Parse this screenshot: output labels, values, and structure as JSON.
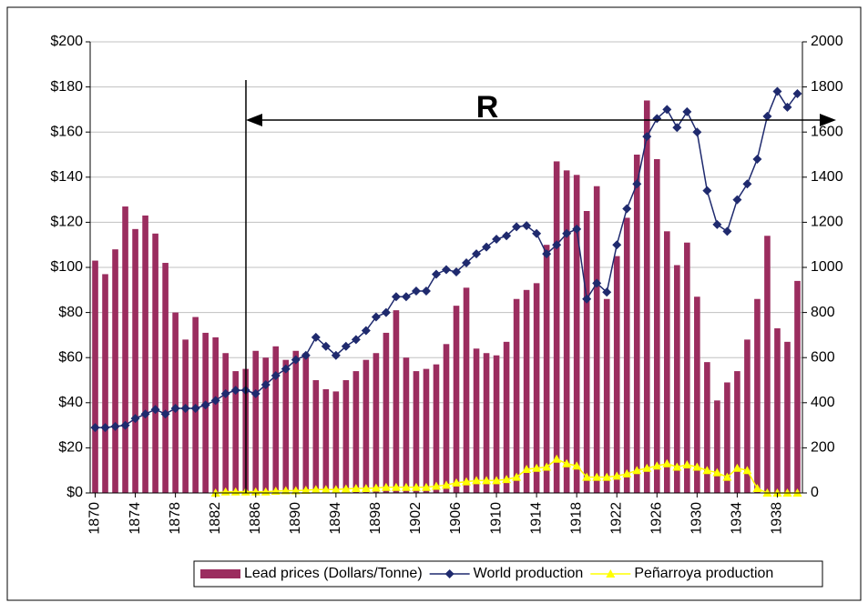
{
  "chart_data": {
    "type": "bar",
    "annotation": "R",
    "x": [
      1870,
      1871,
      1872,
      1873,
      1874,
      1875,
      1876,
      1877,
      1878,
      1879,
      1880,
      1881,
      1882,
      1883,
      1884,
      1885,
      1886,
      1887,
      1888,
      1889,
      1890,
      1891,
      1892,
      1893,
      1894,
      1895,
      1896,
      1897,
      1898,
      1899,
      1900,
      1901,
      1902,
      1903,
      1904,
      1905,
      1906,
      1907,
      1908,
      1909,
      1910,
      1911,
      1912,
      1913,
      1914,
      1915,
      1916,
      1917,
      1918,
      1919,
      1920,
      1921,
      1922,
      1923,
      1924,
      1925,
      1926,
      1927,
      1928,
      1929,
      1930,
      1931,
      1932,
      1933,
      1934,
      1935,
      1936,
      1937,
      1938,
      1939,
      1940
    ],
    "xticks": [
      1870,
      1874,
      1878,
      1882,
      1886,
      1890,
      1894,
      1898,
      1902,
      1906,
      1910,
      1914,
      1918,
      1922,
      1926,
      1930,
      1934,
      1938
    ],
    "series": [
      {
        "name": "Lead prices (Dollars/Tonne)",
        "type": "bar",
        "color": "#9b2d5f",
        "values": [
          103,
          97,
          108,
          127,
          117,
          123,
          115,
          102,
          80,
          68,
          78,
          71,
          69,
          62,
          54,
          55,
          63,
          60,
          65,
          59,
          63,
          62,
          50,
          46,
          45,
          50,
          54,
          59,
          62,
          71,
          81,
          60,
          54,
          55,
          57,
          66,
          83,
          91,
          64,
          62,
          61,
          67,
          86,
          90,
          93,
          110,
          147,
          143,
          141,
          125,
          136,
          86,
          105,
          122,
          150,
          174,
          148,
          116,
          101,
          111,
          87,
          58,
          41,
          49,
          54,
          68,
          86,
          114,
          73,
          67,
          94
        ]
      },
      {
        "name": "World production",
        "type": "line",
        "axis": "y2",
        "color": "#1f2a6e",
        "marker": "diamond",
        "values": [
          290,
          290,
          295,
          300,
          330,
          350,
          370,
          350,
          375,
          375,
          375,
          390,
          410,
          440,
          455,
          455,
          440,
          480,
          520,
          550,
          590,
          610,
          690,
          650,
          610,
          650,
          680,
          720,
          780,
          800,
          870,
          870,
          895,
          895,
          970,
          990,
          980,
          1020,
          1060,
          1090,
          1125,
          1140,
          1180,
          1185,
          1150,
          1060,
          1100,
          1150,
          1170,
          860,
          930,
          890,
          1100,
          1260,
          1370,
          1580,
          1660,
          1700,
          1620,
          1690,
          1600,
          1340,
          1190,
          1160,
          1300,
          1370,
          1480,
          1670,
          1780,
          1710,
          1770
        ]
      },
      {
        "name": "Peñarroya production",
        "type": "line",
        "axis": "y2",
        "color": "#ffff00",
        "marker": "triangle",
        "values": [
          null,
          null,
          null,
          null,
          null,
          null,
          null,
          null,
          null,
          null,
          null,
          null,
          0,
          5,
          5,
          5,
          5,
          5,
          8,
          10,
          10,
          12,
          15,
          15,
          15,
          18,
          20,
          20,
          22,
          25,
          25,
          25,
          25,
          25,
          30,
          35,
          45,
          50,
          55,
          55,
          55,
          60,
          70,
          105,
          110,
          115,
          150,
          130,
          120,
          70,
          70,
          70,
          75,
          85,
          100,
          110,
          120,
          130,
          115,
          125,
          115,
          100,
          90,
          70,
          110,
          100,
          20,
          0,
          0,
          0,
          0
        ]
      }
    ],
    "ylim": [
      0,
      200
    ],
    "yticks": [
      {
        "value": 0,
        "label": "$0"
      },
      {
        "value": 20,
        "label": "$20"
      },
      {
        "value": 40,
        "label": "$40"
      },
      {
        "value": 60,
        "label": "$60"
      },
      {
        "value": 80,
        "label": "$80"
      },
      {
        "value": 100,
        "label": "$100"
      },
      {
        "value": 120,
        "label": "$120"
      },
      {
        "value": 140,
        "label": "$140"
      },
      {
        "value": 160,
        "label": "$160"
      },
      {
        "value": 180,
        "label": "$180"
      },
      {
        "value": 200,
        "label": "$200"
      }
    ],
    "y2lim": [
      0,
      2000
    ],
    "y2ticks": [
      0,
      200,
      400,
      600,
      800,
      1000,
      1200,
      1400,
      1600,
      1800,
      2000
    ],
    "grid": true,
    "legend": "bottom"
  }
}
